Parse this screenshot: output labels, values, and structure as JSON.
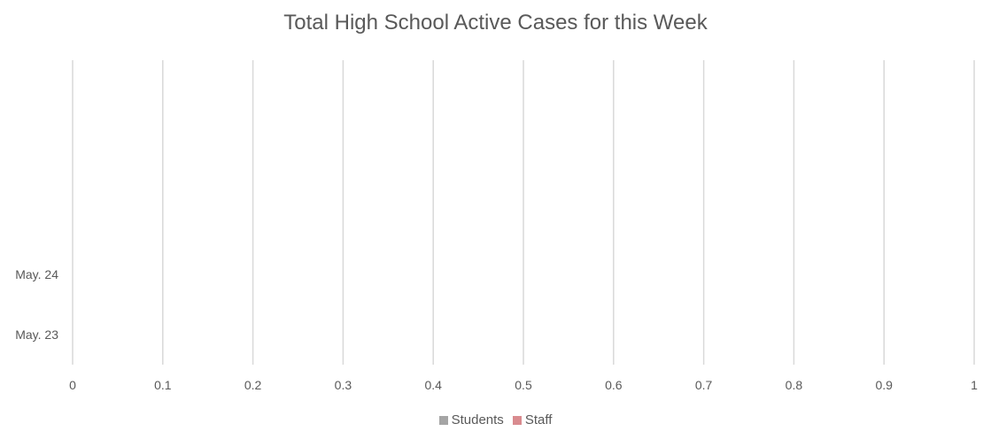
{
  "chart_data": {
    "type": "bar",
    "orientation": "horizontal",
    "stacked": true,
    "title": "Total High School Active Cases for this Week",
    "categories": [
      "May. 23",
      "May. 24"
    ],
    "series": [
      {
        "name": "Students",
        "color": "#a5a5a5",
        "values": [
          0,
          0
        ]
      },
      {
        "name": "Staff",
        "color": "#d98b8f",
        "values": [
          0,
          0
        ]
      }
    ],
    "xlim": [
      0,
      1
    ],
    "x_ticks": [
      "0",
      "0.1",
      "0.2",
      "0.3",
      "0.4",
      "0.5",
      "0.6",
      "0.7",
      "0.8",
      "0.9",
      "1"
    ],
    "grid": true,
    "legend_position": "bottom"
  }
}
